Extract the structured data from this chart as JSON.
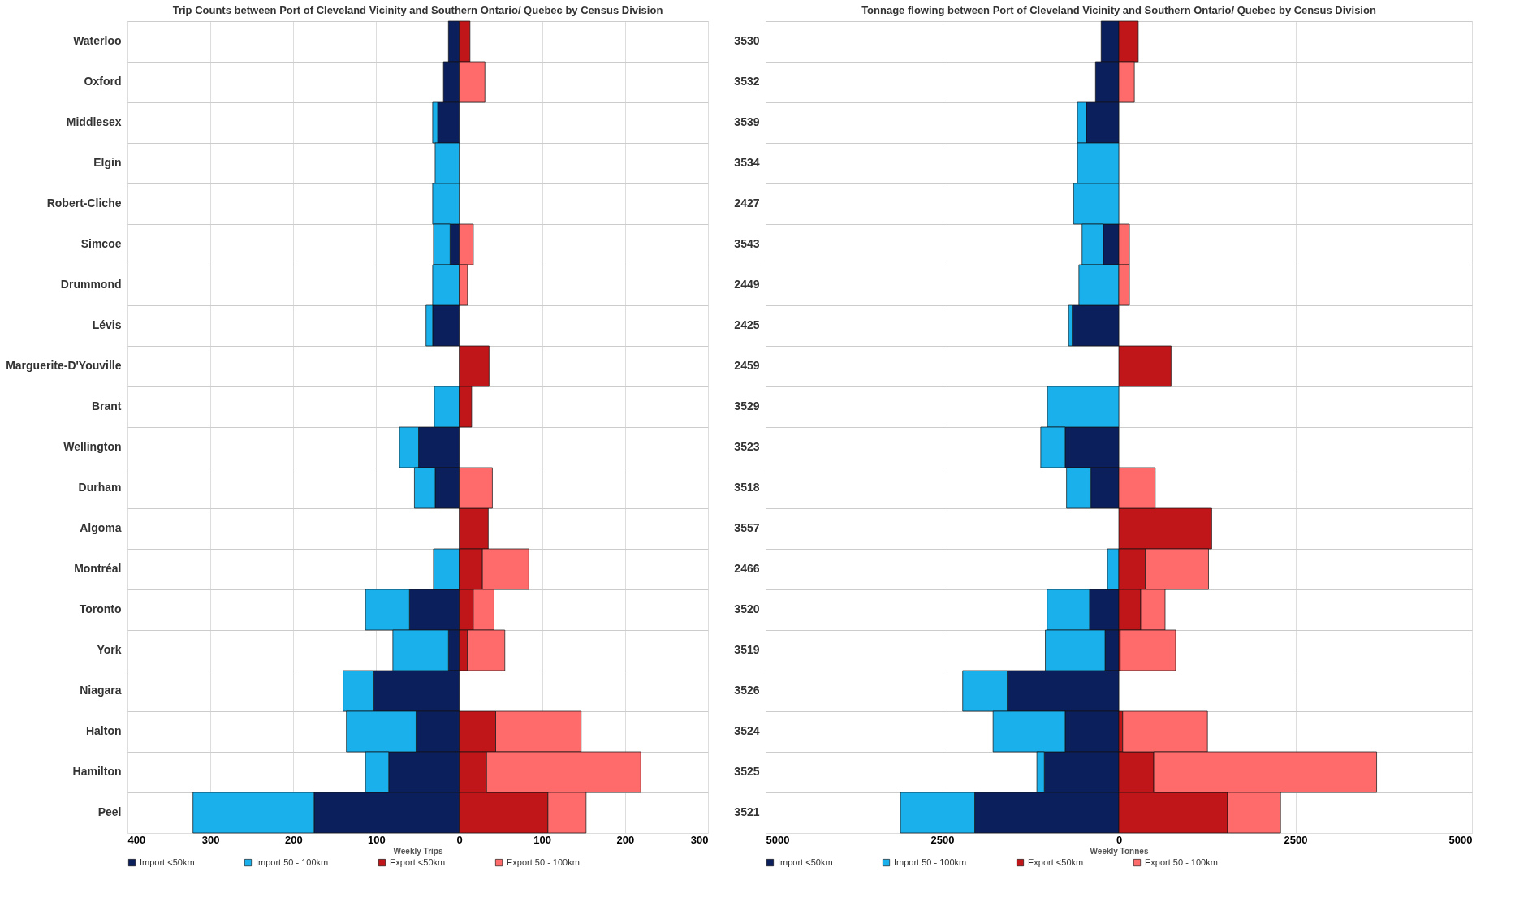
{
  "chart_data": [
    {
      "type": "bar",
      "orientation": "horizontal",
      "stacked": true,
      "title": "Trip Counts between Port of Cleveland Vicinity and Southern Ontario/ Quebec by Census Division",
      "xlabel": "Weekly Trips",
      "legend": "bottom",
      "grid": true,
      "categories": [
        "Waterloo",
        "Oxford",
        "Middlesex",
        "Elgin",
        "Robert-Cliche",
        "Simcoe",
        "Drummond",
        "Lévis",
        "Marguerite-D'Youville",
        "Brant",
        "Wellington",
        "Durham",
        "Algoma",
        "Montréal",
        "Toronto",
        "York",
        "Niagara",
        "Halton",
        "Hamilton",
        "Peel"
      ],
      "xlim": [
        -400,
        300
      ],
      "xticks": [
        {
          "value": -400,
          "label": "400"
        },
        {
          "value": -300,
          "label": "300"
        },
        {
          "value": -200,
          "label": "200"
        },
        {
          "value": -100,
          "label": "100"
        },
        0,
        100,
        200,
        300
      ],
      "series": [
        {
          "name": "Import <50km",
          "color": "#0b1f5c",
          "values": [
            -13,
            -19,
            -26,
            0,
            0,
            -11,
            0,
            -32,
            0,
            0,
            -49,
            -29,
            0,
            0,
            -60,
            -13,
            -103,
            -52,
            -85,
            -175
          ]
        },
        {
          "name": "Import 50 - 100km",
          "color": "#1ab0ec",
          "values": [
            0,
            0,
            -6,
            -29,
            -32,
            -20,
            -32,
            -8,
            0,
            -30,
            -23,
            -25,
            0,
            -31,
            -53,
            -67,
            -37,
            -84,
            -28,
            -146
          ]
        },
        {
          "name": "Export <50km",
          "color": "#c0161a",
          "values": [
            13,
            0,
            0,
            0,
            0,
            0,
            0,
            0,
            36,
            15,
            0,
            0,
            35,
            28,
            17,
            10,
            0,
            44,
            33,
            107
          ]
        },
        {
          "name": "Export 50 - 100km",
          "color": "#ff6b6b",
          "values": [
            0,
            31,
            0,
            0,
            0,
            17,
            10,
            0,
            0,
            0,
            0,
            40,
            0,
            56,
            25,
            45,
            0,
            103,
            186,
            46
          ]
        }
      ]
    },
    {
      "type": "bar",
      "orientation": "horizontal",
      "stacked": true,
      "title": "Tonnage flowing between Port of Cleveland Vicinity and Southern Ontario/ Quebec by Census Division",
      "xlabel": "Weekly Tonnes",
      "legend": "bottom",
      "grid": true,
      "categories": [
        "3530",
        "3532",
        "3539",
        "3534",
        "2427",
        "3543",
        "2449",
        "2425",
        "2459",
        "3529",
        "3523",
        "3518",
        "3557",
        "2466",
        "3520",
        "3519",
        "3526",
        "3524",
        "3525",
        "3521"
      ],
      "xlim": [
        -5000,
        5000
      ],
      "xticks": [
        {
          "value": -5000,
          "label": "5000"
        },
        {
          "value": -2500,
          "label": "2500"
        },
        0,
        2500,
        5000
      ],
      "series": [
        {
          "name": "Import <50km",
          "color": "#0b1f5c",
          "values": [
            -250,
            -330,
            -460,
            0,
            0,
            -220,
            0,
            -660,
            0,
            0,
            -760,
            -395,
            0,
            0,
            -415,
            -195,
            -1580,
            -760,
            -1055,
            -2040
          ]
        },
        {
          "name": "Import 50 - 100km",
          "color": "#1ab0ec",
          "values": [
            0,
            0,
            -125,
            -585,
            -640,
            -300,
            -565,
            -50,
            0,
            -1010,
            -345,
            -345,
            0,
            -160,
            -600,
            -845,
            -630,
            -1020,
            -105,
            -1050
          ]
        },
        {
          "name": "Export <50km",
          "color": "#c0161a",
          "values": [
            275,
            0,
            0,
            0,
            0,
            0,
            0,
            0,
            740,
            0,
            0,
            0,
            1315,
            375,
            310,
            20,
            0,
            55,
            495,
            1540
          ]
        },
        {
          "name": "Export 50 - 100km",
          "color": "#ff6b6b",
          "values": [
            0,
            220,
            0,
            0,
            0,
            150,
            150,
            0,
            0,
            0,
            0,
            515,
            0,
            895,
            345,
            785,
            0,
            1200,
            3155,
            750
          ]
        }
      ]
    }
  ]
}
